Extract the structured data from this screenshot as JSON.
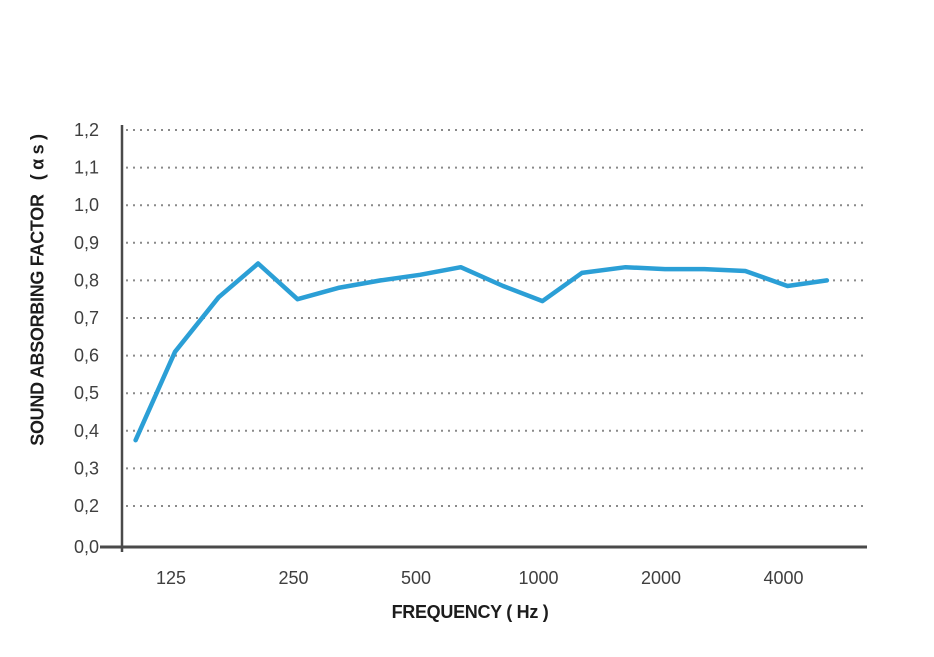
{
  "chart_data": {
    "type": "line",
    "title": "",
    "xlabel": "FREQUENCY ( Hz )",
    "ylabel": "SOUND ABSORBING FACTOR   ( α s )",
    "x_scale": "log2",
    "ylim": [
      0.0,
      1.2
    ],
    "grid": "horizontal dotted lines at each labelled y tick (no 0,1 line; 0,0 is the solid axis)",
    "legend": "none",
    "x_ticks": [
      {
        "label": "125",
        "f": 125
      },
      {
        "label": "250",
        "f": 250
      },
      {
        "label": "500",
        "f": 500
      },
      {
        "label": "1000",
        "f": 1000
      },
      {
        "label": "2000",
        "f": 2000
      },
      {
        "label": "4000",
        "f": 4000
      }
    ],
    "y_ticks": [
      {
        "label": "1,2",
        "v": 1.2
      },
      {
        "label": "1,1",
        "v": 1.1
      },
      {
        "label": "1,0",
        "v": 1.0
      },
      {
        "label": "0,9",
        "v": 0.9
      },
      {
        "label": "0,8",
        "v": 0.8
      },
      {
        "label": "0,7",
        "v": 0.7
      },
      {
        "label": "0,6",
        "v": 0.6
      },
      {
        "label": "0,5",
        "v": 0.5
      },
      {
        "label": "0,4",
        "v": 0.4
      },
      {
        "label": "0,3",
        "v": 0.3
      },
      {
        "label": "0,2",
        "v": 0.2
      },
      {
        "label": "0,0",
        "v": 0.0
      }
    ],
    "series": [
      {
        "name": "sound-absorbing-factor",
        "x": [
          100,
          125,
          160,
          200,
          250,
          315,
          400,
          500,
          630,
          800,
          1000,
          1250,
          1600,
          2000,
          2500,
          3150,
          4000,
          5000
        ],
        "values": [
          0.375,
          0.61,
          0.755,
          0.845,
          0.75,
          0.78,
          0.8,
          0.815,
          0.835,
          0.785,
          0.745,
          0.82,
          0.835,
          0.83,
          0.83,
          0.825,
          0.785,
          0.8
        ]
      }
    ],
    "colors": {
      "line": "#2b9fd6",
      "grid": "#8a8a8a",
      "axis": "#4a4a4a",
      "tick_text": "#3f3f3f",
      "title_text": "#1c1c1c",
      "background": "#ffffff"
    }
  }
}
